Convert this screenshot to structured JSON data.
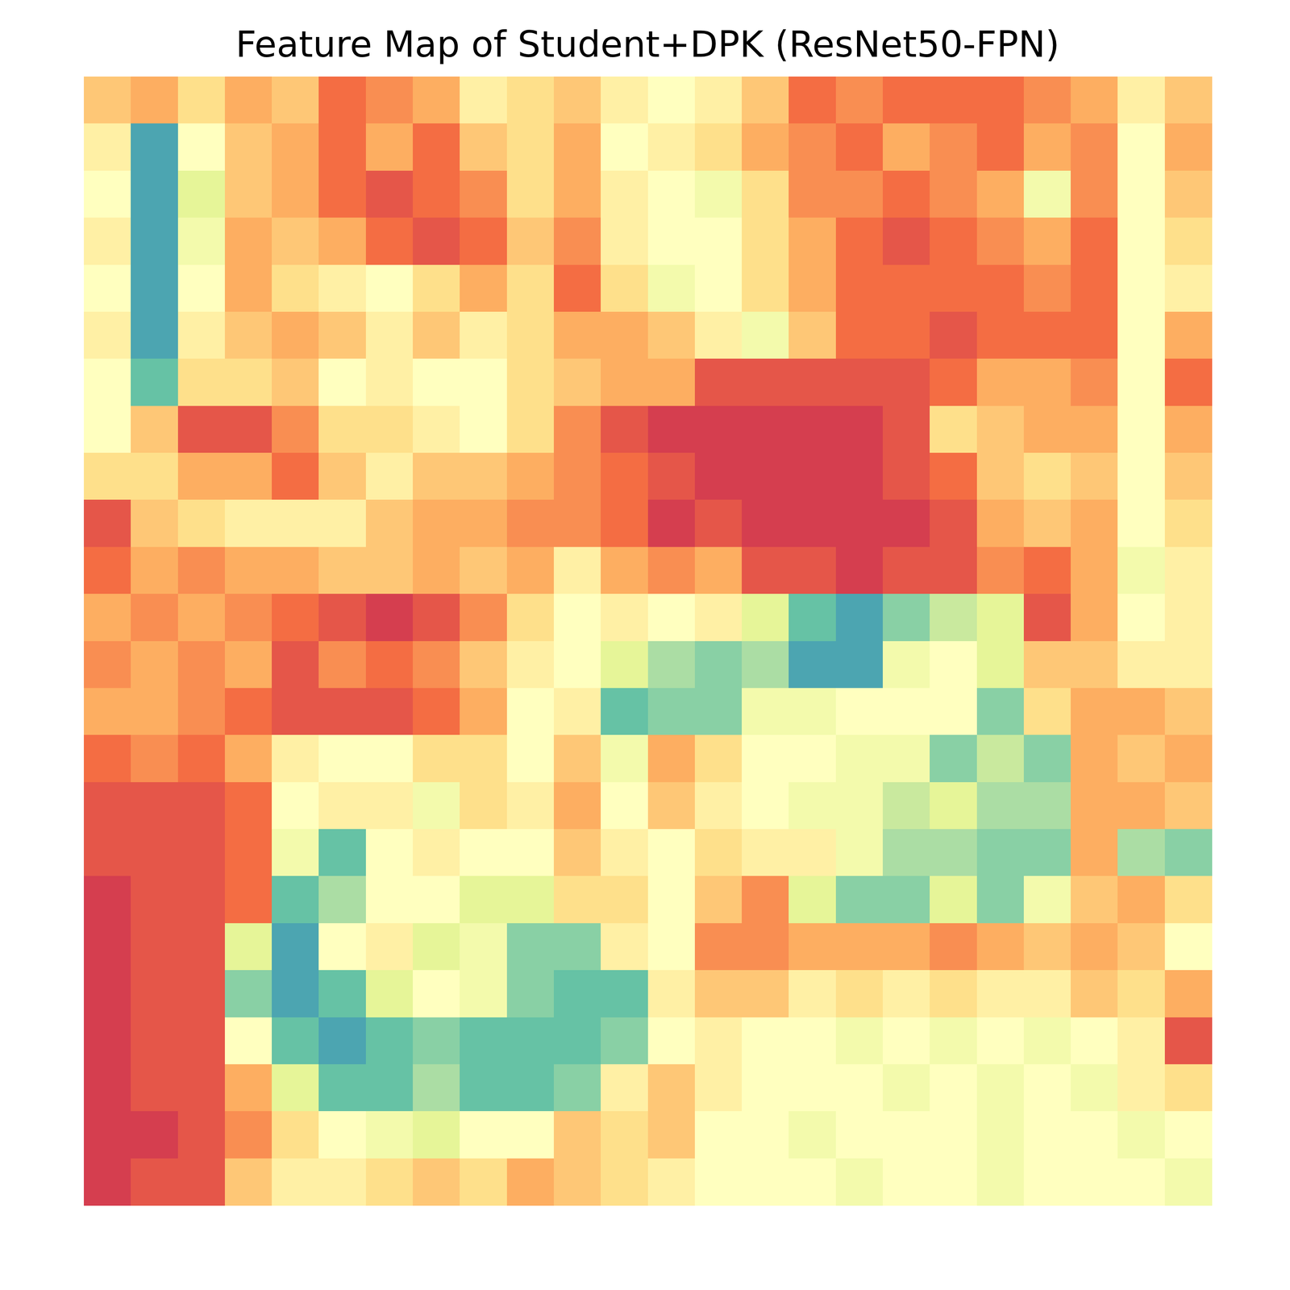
{
  "chart_data": {
    "type": "heatmap",
    "title": "Feature Map of Student+DPK (ResNet50-FPN)",
    "color": "Spectral",
    "tick_labels": false,
    "value_range": [
      0,
      1
    ],
    "cells": [
      [
        0.35,
        0.3,
        0.4,
        0.3,
        0.35,
        0.2,
        0.25,
        0.3,
        0.45,
        0.4,
        0.35,
        0.45,
        0.5,
        0.45,
        0.35,
        0.2,
        0.25,
        0.2,
        0.2,
        0.2,
        0.25,
        0.3,
        0.45,
        0.35
      ],
      [
        0.45,
        0.85,
        0.5,
        0.35,
        0.3,
        0.2,
        0.3,
        0.2,
        0.35,
        0.4,
        0.3,
        0.5,
        0.45,
        0.4,
        0.3,
        0.25,
        0.2,
        0.3,
        0.25,
        0.2,
        0.3,
        0.25,
        0.5,
        0.3
      ],
      [
        0.5,
        0.85,
        0.6,
        0.35,
        0.3,
        0.2,
        0.15,
        0.2,
        0.25,
        0.4,
        0.3,
        0.45,
        0.5,
        0.55,
        0.4,
        0.25,
        0.25,
        0.2,
        0.25,
        0.3,
        0.55,
        0.25,
        0.5,
        0.35
      ],
      [
        0.45,
        0.85,
        0.55,
        0.3,
        0.35,
        0.3,
        0.2,
        0.15,
        0.2,
        0.35,
        0.25,
        0.45,
        0.5,
        0.5,
        0.4,
        0.3,
        0.2,
        0.15,
        0.2,
        0.25,
        0.3,
        0.2,
        0.5,
        0.4
      ],
      [
        0.5,
        0.85,
        0.5,
        0.3,
        0.4,
        0.45,
        0.5,
        0.4,
        0.3,
        0.4,
        0.2,
        0.4,
        0.55,
        0.5,
        0.4,
        0.3,
        0.2,
        0.2,
        0.2,
        0.2,
        0.25,
        0.2,
        0.5,
        0.45
      ],
      [
        0.45,
        0.85,
        0.45,
        0.35,
        0.3,
        0.35,
        0.45,
        0.35,
        0.45,
        0.4,
        0.3,
        0.3,
        0.35,
        0.45,
        0.55,
        0.35,
        0.2,
        0.2,
        0.15,
        0.2,
        0.2,
        0.2,
        0.5,
        0.3
      ],
      [
        0.5,
        0.8,
        0.4,
        0.4,
        0.35,
        0.5,
        0.45,
        0.5,
        0.5,
        0.4,
        0.35,
        0.3,
        0.3,
        0.15,
        0.15,
        0.15,
        0.15,
        0.15,
        0.2,
        0.3,
        0.3,
        0.25,
        0.5,
        0.2
      ],
      [
        0.5,
        0.35,
        0.15,
        0.15,
        0.25,
        0.4,
        0.4,
        0.45,
        0.5,
        0.4,
        0.25,
        0.15,
        0.1,
        0.1,
        0.1,
        0.1,
        0.1,
        0.15,
        0.4,
        0.35,
        0.3,
        0.3,
        0.5,
        0.3
      ],
      [
        0.4,
        0.4,
        0.3,
        0.3,
        0.2,
        0.35,
        0.45,
        0.35,
        0.35,
        0.3,
        0.25,
        0.2,
        0.15,
        0.1,
        0.1,
        0.1,
        0.1,
        0.15,
        0.2,
        0.35,
        0.4,
        0.35,
        0.5,
        0.35
      ],
      [
        0.15,
        0.35,
        0.4,
        0.45,
        0.45,
        0.45,
        0.35,
        0.3,
        0.3,
        0.25,
        0.25,
        0.2,
        0.1,
        0.15,
        0.1,
        0.1,
        0.1,
        0.1,
        0.15,
        0.3,
        0.35,
        0.3,
        0.5,
        0.4
      ],
      [
        0.2,
        0.3,
        0.25,
        0.3,
        0.3,
        0.35,
        0.35,
        0.3,
        0.35,
        0.3,
        0.45,
        0.3,
        0.25,
        0.3,
        0.15,
        0.15,
        0.1,
        0.15,
        0.15,
        0.25,
        0.2,
        0.3,
        0.55,
        0.45
      ],
      [
        0.3,
        0.25,
        0.3,
        0.25,
        0.2,
        0.15,
        0.1,
        0.15,
        0.25,
        0.4,
        0.5,
        0.45,
        0.5,
        0.45,
        0.6,
        0.8,
        0.85,
        0.75,
        0.65,
        0.6,
        0.15,
        0.3,
        0.5,
        0.45
      ],
      [
        0.25,
        0.3,
        0.25,
        0.3,
        0.15,
        0.25,
        0.2,
        0.25,
        0.35,
        0.45,
        0.5,
        0.6,
        0.7,
        0.75,
        0.7,
        0.85,
        0.85,
        0.55,
        0.5,
        0.6,
        0.35,
        0.35,
        0.45,
        0.45
      ],
      [
        0.3,
        0.3,
        0.25,
        0.2,
        0.15,
        0.15,
        0.15,
        0.2,
        0.3,
        0.5,
        0.45,
        0.8,
        0.75,
        0.75,
        0.55,
        0.55,
        0.5,
        0.5,
        0.5,
        0.75,
        0.4,
        0.3,
        0.3,
        0.35
      ],
      [
        0.2,
        0.25,
        0.2,
        0.3,
        0.45,
        0.5,
        0.5,
        0.4,
        0.4,
        0.5,
        0.35,
        0.55,
        0.3,
        0.4,
        0.5,
        0.5,
        0.55,
        0.55,
        0.75,
        0.65,
        0.75,
        0.3,
        0.35,
        0.3
      ],
      [
        0.15,
        0.15,
        0.15,
        0.2,
        0.5,
        0.45,
        0.45,
        0.55,
        0.4,
        0.45,
        0.3,
        0.5,
        0.35,
        0.45,
        0.5,
        0.55,
        0.55,
        0.65,
        0.6,
        0.7,
        0.7,
        0.3,
        0.3,
        0.35
      ],
      [
        0.15,
        0.15,
        0.15,
        0.2,
        0.55,
        0.8,
        0.5,
        0.45,
        0.5,
        0.5,
        0.35,
        0.45,
        0.5,
        0.4,
        0.45,
        0.45,
        0.55,
        0.7,
        0.7,
        0.75,
        0.75,
        0.3,
        0.7,
        0.75
      ],
      [
        0.1,
        0.15,
        0.15,
        0.2,
        0.8,
        0.7,
        0.5,
        0.5,
        0.6,
        0.6,
        0.4,
        0.4,
        0.5,
        0.35,
        0.25,
        0.6,
        0.75,
        0.75,
        0.6,
        0.75,
        0.55,
        0.35,
        0.3,
        0.4
      ],
      [
        0.1,
        0.15,
        0.15,
        0.6,
        0.85,
        0.5,
        0.45,
        0.6,
        0.55,
        0.75,
        0.75,
        0.45,
        0.5,
        0.25,
        0.25,
        0.3,
        0.3,
        0.3,
        0.25,
        0.3,
        0.35,
        0.3,
        0.35,
        0.5
      ],
      [
        0.1,
        0.15,
        0.15,
        0.75,
        0.85,
        0.8,
        0.6,
        0.5,
        0.55,
        0.75,
        0.8,
        0.8,
        0.45,
        0.35,
        0.35,
        0.45,
        0.4,
        0.45,
        0.4,
        0.45,
        0.45,
        0.35,
        0.4,
        0.3
      ],
      [
        0.1,
        0.15,
        0.15,
        0.5,
        0.8,
        0.85,
        0.8,
        0.75,
        0.8,
        0.8,
        0.8,
        0.75,
        0.5,
        0.45,
        0.5,
        0.5,
        0.55,
        0.5,
        0.55,
        0.5,
        0.55,
        0.5,
        0.45,
        0.15
      ],
      [
        0.1,
        0.15,
        0.15,
        0.3,
        0.6,
        0.8,
        0.8,
        0.7,
        0.8,
        0.8,
        0.75,
        0.45,
        0.35,
        0.45,
        0.5,
        0.5,
        0.5,
        0.55,
        0.5,
        0.55,
        0.5,
        0.55,
        0.45,
        0.4
      ],
      [
        0.1,
        0.1,
        0.15,
        0.25,
        0.4,
        0.5,
        0.55,
        0.6,
        0.5,
        0.5,
        0.35,
        0.4,
        0.35,
        0.5,
        0.5,
        0.55,
        0.5,
        0.5,
        0.5,
        0.55,
        0.5,
        0.5,
        0.55,
        0.5
      ],
      [
        0.1,
        0.15,
        0.15,
        0.35,
        0.45,
        0.45,
        0.4,
        0.35,
        0.4,
        0.3,
        0.35,
        0.4,
        0.45,
        0.5,
        0.5,
        0.5,
        0.55,
        0.5,
        0.5,
        0.55,
        0.5,
        0.5,
        0.5,
        0.55
      ]
    ]
  }
}
